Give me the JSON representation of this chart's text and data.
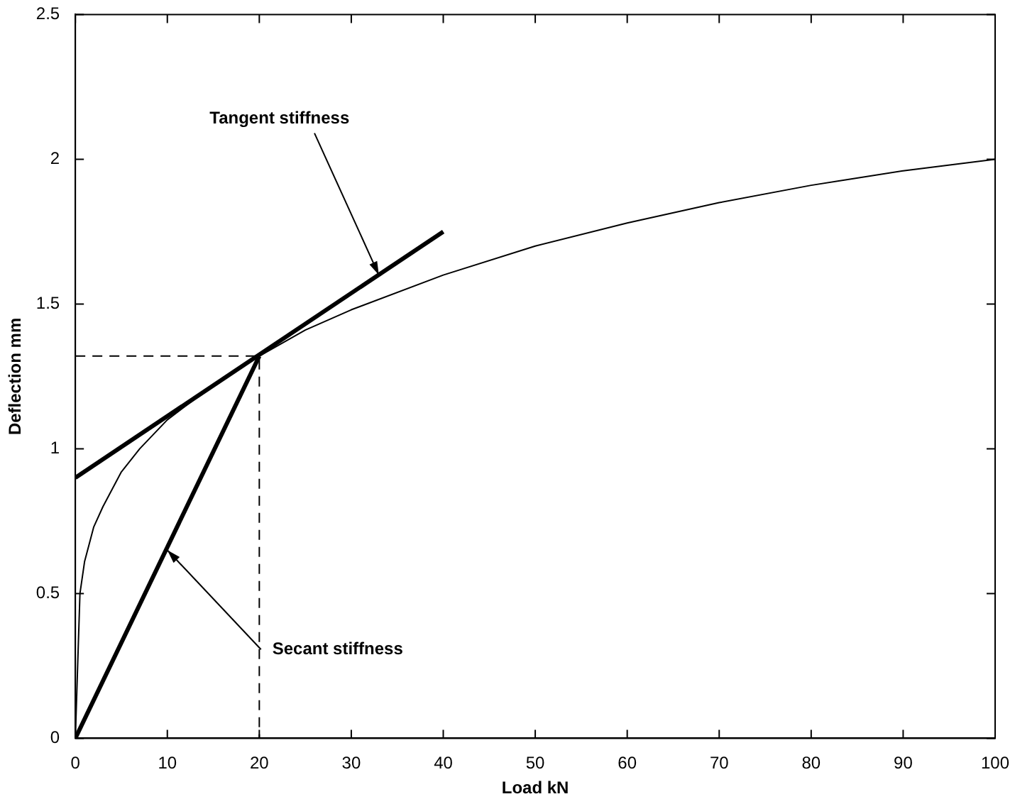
{
  "chart_data": {
    "type": "line",
    "xlabel": "Load kN",
    "ylabel": "Deflection mm",
    "xlim": [
      0,
      100
    ],
    "xticks": [
      0,
      10,
      20,
      30,
      40,
      50,
      60,
      70,
      80,
      90,
      100
    ],
    "ylim": [
      0,
      2.5
    ],
    "yticks": [
      0,
      0.5,
      1,
      1.5,
      2,
      2.5
    ],
    "series": [
      {
        "color": "#000000",
        "line_style": "solid",
        "x": [
          0,
          0.5,
          1,
          2,
          3,
          5,
          7,
          10,
          15,
          20,
          25,
          30,
          40,
          50,
          60,
          70,
          80,
          90,
          100
        ],
        "values": [
          0,
          0.5,
          0.61,
          0.73,
          0.8,
          0.92,
          1.0,
          1.1,
          1.22,
          1.32,
          1.41,
          1.48,
          1.6,
          1.7,
          1.78,
          1.85,
          1.91,
          1.96,
          2.0
        ]
      },
      {
        "color": "#000000",
        "line_style": "solid",
        "x": [
          0,
          40
        ],
        "values": [
          0.9,
          1.75
        ]
      },
      {
        "color": "#000000",
        "line_style": "solid",
        "x": [
          0,
          20
        ],
        "values": [
          0,
          1.32
        ]
      },
      {
        "color": "#000000",
        "line_style": "dashed",
        "x": [
          0,
          20,
          20
        ],
        "values": [
          1.32,
          1.32,
          0
        ]
      }
    ],
    "annotations": [
      {
        "text": "Tangent stiffness",
        "x": 33,
        "y": 1.6
      },
      {
        "text": "Secant stiffness",
        "x": 10,
        "y": 0.65
      }
    ]
  }
}
